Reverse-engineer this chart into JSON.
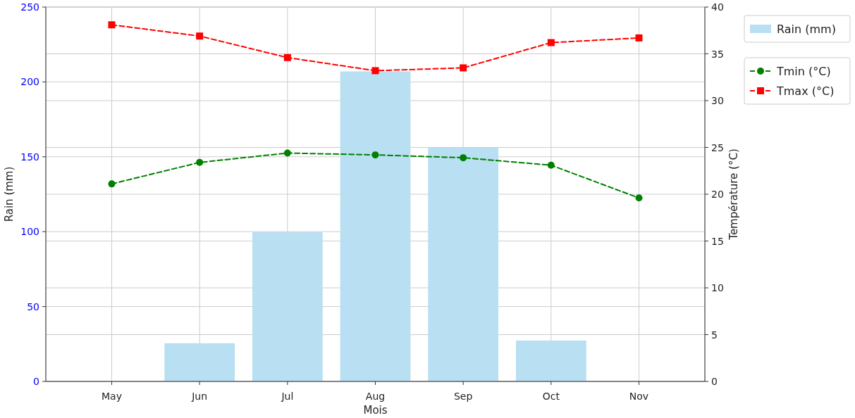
{
  "chart_data": {
    "type": "bar",
    "xlabel": "Mois",
    "ylabel": "Rain (mm)",
    "y2label": "Température (°C)",
    "categories": [
      "May",
      "Jun",
      "Jul",
      "Aug",
      "Sep",
      "Oct",
      "Nov"
    ],
    "series": [
      {
        "name": "Rain (mm)",
        "color": "#b8dff2",
        "values": [
          0,
          25.5,
          99.6,
          207,
          156,
          27.3,
          0
        ]
      },
      {
        "name": "Tmin (°C)",
        "type": "line",
        "axis": "y2",
        "color": "#008000",
        "marker": "circle",
        "line_style": "dashed",
        "values": [
          21.1,
          23.4,
          24.4,
          24.2,
          23.9,
          23.1,
          19.6
        ]
      },
      {
        "name": "Tmax (°C)",
        "type": "line",
        "axis": "y2",
        "color": "#ff0000",
        "marker": "square",
        "line_style": "dashed",
        "values": [
          38.1,
          36.9,
          34.6,
          33.2,
          33.5,
          36.2,
          36.7
        ]
      }
    ],
    "ylim": [
      0,
      250
    ],
    "yticks": [
      0,
      50,
      100,
      150,
      200,
      250
    ],
    "y2lim": [
      0,
      40
    ],
    "y2ticks": [
      0,
      5,
      10,
      15,
      20,
      25,
      30,
      35,
      40
    ],
    "grid": true,
    "legend": "top right"
  }
}
